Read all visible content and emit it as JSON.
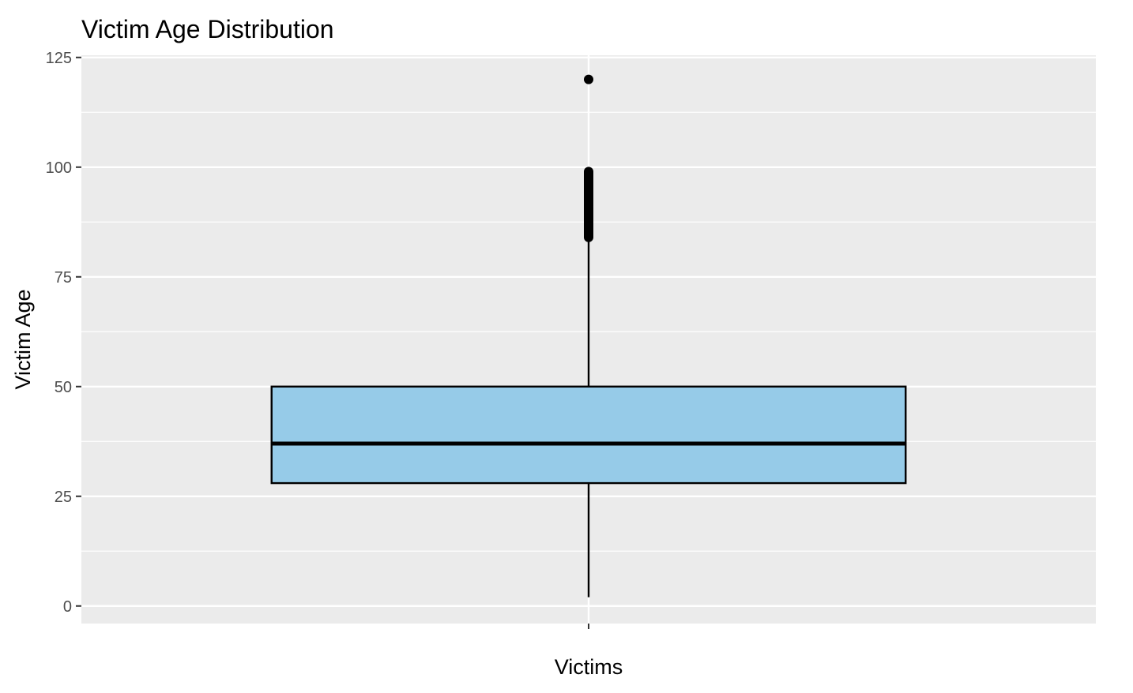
{
  "chart_data": {
    "type": "boxplot",
    "title": "Victim Age Distribution",
    "xlabel": "Victims",
    "ylabel": "Victim Age",
    "categories": [
      ""
    ],
    "ylim": [
      -4,
      125.5
    ],
    "yticks": [
      0,
      25,
      50,
      75,
      100,
      125
    ],
    "y_minor": [
      12.5,
      37.5,
      62.5,
      87.5,
      112.5
    ],
    "grid": true,
    "legend": "none",
    "box": {
      "q1": 28,
      "median": 37,
      "q3": 50,
      "whisker_low": 2,
      "whisker_high": 83,
      "outliers": [
        84,
        85,
        86,
        87,
        88,
        89,
        90,
        91,
        92,
        93,
        94,
        95,
        96,
        97,
        98,
        99,
        120
      ]
    },
    "colors": {
      "box_fill": "#96cbe8",
      "outline": "#000000",
      "panel": "#ebebeb",
      "grid": "#ffffff",
      "tick_text": "#4d4d4d"
    }
  }
}
